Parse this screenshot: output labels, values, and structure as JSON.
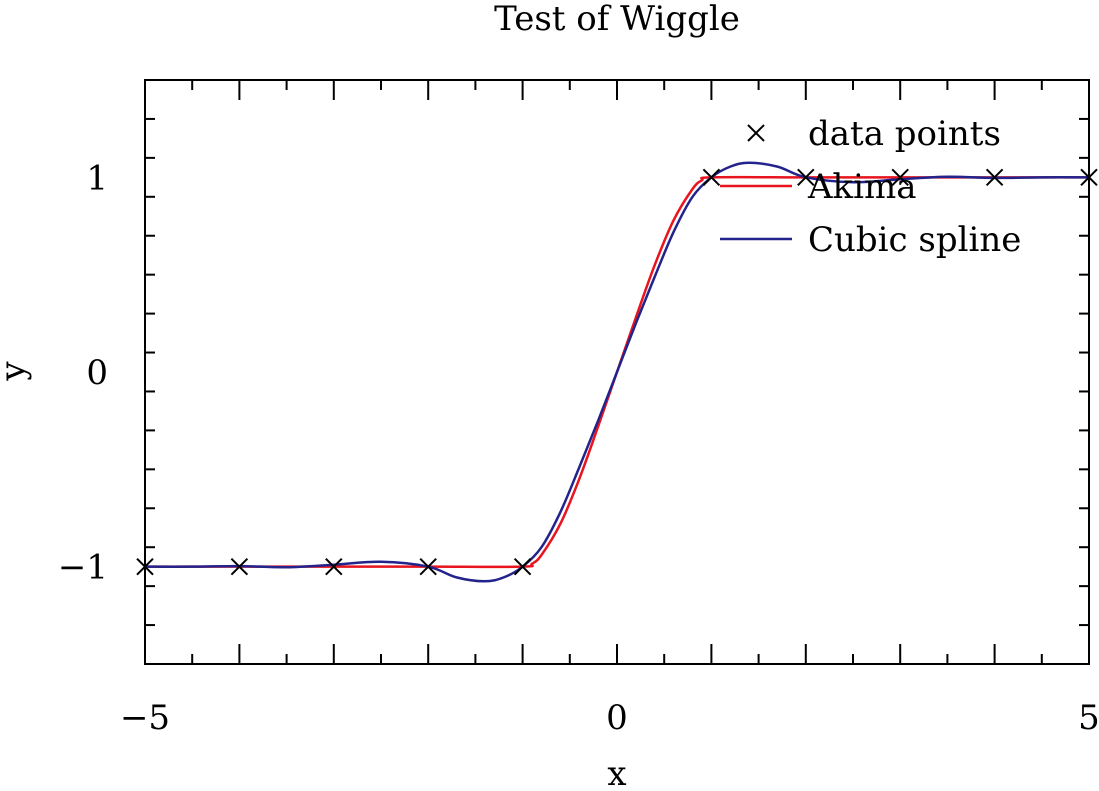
{
  "chart_data": {
    "type": "line",
    "title": "Test of Wiggle",
    "xlabel": "x",
    "ylabel": "y",
    "xlim": [
      -5,
      5
    ],
    "ylim": [
      -1.5,
      1.5
    ],
    "x_ticks": [
      {
        "value": -5,
        "label": "−5"
      },
      {
        "value": 0,
        "label": "0"
      },
      {
        "value": 5,
        "label": "5"
      }
    ],
    "y_ticks": [
      {
        "value": -1,
        "label": "−1"
      },
      {
        "value": 0,
        "label": "0"
      },
      {
        "value": 1,
        "label": "1"
      }
    ],
    "legend_position": "top-right",
    "grid": false,
    "series": [
      {
        "name": "data points",
        "kind": "markers",
        "marker": "x",
        "color": "#000000",
        "x": [
          -5,
          -4,
          -3,
          -2,
          -1,
          1,
          2,
          3,
          4,
          5
        ],
        "y": [
          -1,
          -1,
          -1,
          -1,
          -1,
          1,
          1,
          1,
          1,
          1
        ]
      },
      {
        "name": "Akima",
        "kind": "line",
        "color": "#e8141e",
        "x": [
          -5,
          -4,
          -3,
          -2,
          -1,
          -0.9,
          -0.8,
          -0.6,
          -0.4,
          -0.2,
          0,
          0.2,
          0.4,
          0.6,
          0.8,
          0.9,
          1,
          2,
          3,
          4,
          5
        ],
        "y": [
          -1,
          -1,
          -1,
          -1,
          -1,
          -0.985,
          -0.94,
          -0.78,
          -0.55,
          -0.28,
          0,
          0.28,
          0.55,
          0.78,
          0.94,
          0.985,
          1,
          1,
          1,
          1,
          1
        ]
      },
      {
        "name": "Cubic spline",
        "kind": "line",
        "color": "#23238c",
        "x": [
          -5,
          -4.5,
          -4,
          -3.5,
          -3,
          -2.5,
          -2,
          -1.7,
          -1.4,
          -1.2,
          -1,
          -0.8,
          -0.6,
          -0.4,
          -0.2,
          0,
          0.2,
          0.4,
          0.6,
          0.8,
          1,
          1.2,
          1.4,
          1.7,
          2,
          2.5,
          3,
          3.5,
          4,
          4.5,
          5
        ],
        "y": [
          -1,
          -1,
          -0.997,
          -1.003,
          -0.99,
          -0.975,
          -1,
          -1.055,
          -1.075,
          -1.055,
          -1,
          -0.9,
          -0.72,
          -0.49,
          -0.25,
          0,
          0.25,
          0.49,
          0.72,
          0.9,
          1,
          1.055,
          1.075,
          1.055,
          1,
          0.975,
          0.99,
          1.003,
          0.997,
          1,
          1
        ]
      }
    ]
  }
}
